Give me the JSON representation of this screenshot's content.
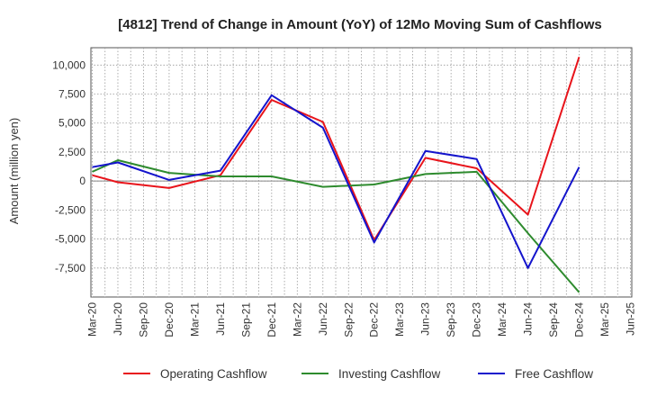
{
  "chart_data": {
    "type": "line",
    "title": "[4812]  Trend of Change in Amount (YoY) of 12Mo Moving Sum of Cashflows",
    "xlabel": "",
    "ylabel": "Amount (million yen)",
    "ylim": [
      -10000,
      11500
    ],
    "yticks": [
      10000,
      7500,
      5000,
      2500,
      0,
      -2500,
      -5000,
      -7500
    ],
    "ytick_labels": [
      "10,000",
      "7,500",
      "5,000",
      "2,500",
      "0",
      "-2,500",
      "-5,000",
      "-7,500"
    ],
    "categories": [
      "Mar-20",
      "Jun-20",
      "Sep-20",
      "Dec-20",
      "Mar-21",
      "Jun-21",
      "Sep-21",
      "Dec-21",
      "Mar-22",
      "Jun-22",
      "Sep-22",
      "Dec-22",
      "Mar-23",
      "Jun-23",
      "Sep-23",
      "Dec-23",
      "Mar-24",
      "Jun-24",
      "Sep-24",
      "Dec-24",
      "Mar-25",
      "Jun-25"
    ],
    "grid": true,
    "legend_position": "bottom",
    "series": [
      {
        "name": "Operating Cashflow",
        "color": "#e8141b",
        "values": [
          500,
          -100,
          null,
          -600,
          null,
          500,
          null,
          7000,
          null,
          5100,
          null,
          -5100,
          null,
          2000,
          null,
          1100,
          null,
          -2900,
          null,
          10700,
          null,
          null
        ]
      },
      {
        "name": "Investing Cashflow",
        "color": "#2e8b2e",
        "values": [
          800,
          1800,
          null,
          700,
          null,
          400,
          null,
          400,
          null,
          -500,
          null,
          -300,
          null,
          600,
          null,
          800,
          null,
          -4500,
          null,
          -9600,
          null,
          null
        ]
      },
      {
        "name": "Free Cashflow",
        "color": "#1414cc",
        "values": [
          1200,
          1600,
          null,
          100,
          null,
          900,
          null,
          7400,
          null,
          4600,
          null,
          -5300,
          null,
          2600,
          null,
          1900,
          null,
          -7500,
          null,
          1200,
          null,
          null
        ]
      }
    ]
  }
}
